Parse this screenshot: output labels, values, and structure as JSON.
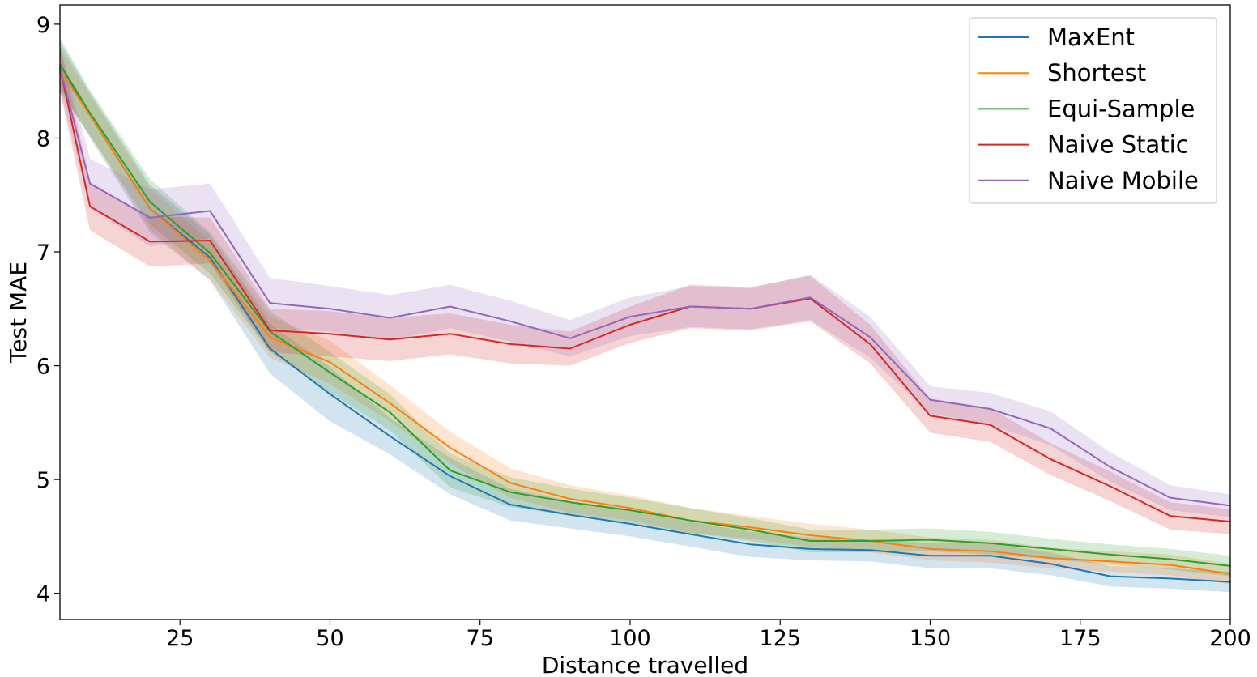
{
  "chart_data": {
    "type": "line",
    "title": "",
    "xlabel": "Distance travelled",
    "ylabel": "Test MAE",
    "xlim": [
      5,
      200
    ],
    "ylim": [
      3.77,
      9.17
    ],
    "xticks": [
      25,
      50,
      75,
      100,
      125,
      150,
      175,
      200
    ],
    "yticks": [
      4,
      5,
      6,
      7,
      8,
      9
    ],
    "grid": false,
    "legend_position": "top-right",
    "x": [
      5,
      10,
      20,
      30,
      40,
      50,
      60,
      70,
      80,
      90,
      100,
      110,
      120,
      130,
      140,
      150,
      160,
      170,
      180,
      190,
      200
    ],
    "series": [
      {
        "name": "MaxEnt",
        "color": "#1f77b4",
        "values": [
          8.65,
          8.2,
          7.38,
          6.95,
          6.15,
          5.75,
          5.38,
          5.03,
          4.78,
          4.69,
          4.61,
          4.52,
          4.43,
          4.39,
          4.38,
          4.33,
          4.33,
          4.26,
          4.15,
          4.13,
          4.1
        ],
        "lower": [
          8.45,
          8.0,
          7.17,
          6.75,
          5.93,
          5.51,
          5.22,
          4.87,
          4.64,
          4.57,
          4.5,
          4.41,
          4.32,
          4.29,
          4.28,
          4.22,
          4.22,
          4.16,
          4.06,
          4.04,
          4.01
        ],
        "upper": [
          8.85,
          8.4,
          7.59,
          7.15,
          6.37,
          5.99,
          5.54,
          5.19,
          4.92,
          4.81,
          4.72,
          4.63,
          4.54,
          4.49,
          4.48,
          4.44,
          4.44,
          4.36,
          4.24,
          4.22,
          4.19
        ]
      },
      {
        "name": "Shortest",
        "color": "#ff7f0e",
        "values": [
          8.6,
          8.2,
          7.38,
          6.92,
          6.25,
          6.03,
          5.67,
          5.28,
          4.97,
          4.83,
          4.75,
          4.64,
          4.58,
          4.51,
          4.46,
          4.39,
          4.37,
          4.31,
          4.28,
          4.25,
          4.17
        ],
        "lower": [
          8.4,
          8.02,
          7.2,
          6.75,
          6.07,
          5.84,
          5.51,
          5.14,
          4.84,
          4.71,
          4.64,
          4.53,
          4.48,
          4.41,
          4.36,
          4.29,
          4.27,
          4.22,
          4.19,
          4.16,
          4.08
        ],
        "upper": [
          8.8,
          8.38,
          7.56,
          7.09,
          6.43,
          6.22,
          5.83,
          5.42,
          5.1,
          4.95,
          4.86,
          4.75,
          4.68,
          4.61,
          4.56,
          4.49,
          4.47,
          4.4,
          4.37,
          4.34,
          4.26
        ]
      },
      {
        "name": "Equi-Sample",
        "color": "#2ca02c",
        "values": [
          8.65,
          8.22,
          7.44,
          6.99,
          6.3,
          5.94,
          5.59,
          5.08,
          4.89,
          4.8,
          4.73,
          4.64,
          4.56,
          4.46,
          4.46,
          4.47,
          4.44,
          4.39,
          4.34,
          4.3,
          4.24
        ],
        "lower": [
          8.42,
          8.02,
          7.24,
          6.81,
          6.12,
          5.76,
          5.43,
          4.93,
          4.76,
          4.68,
          4.62,
          4.53,
          4.46,
          4.36,
          4.36,
          4.37,
          4.34,
          4.3,
          4.25,
          4.21,
          4.15
        ],
        "upper": [
          8.88,
          8.42,
          7.64,
          7.17,
          6.48,
          6.12,
          5.75,
          5.23,
          5.02,
          4.92,
          4.84,
          4.75,
          4.66,
          4.56,
          4.56,
          4.57,
          4.54,
          4.48,
          4.43,
          4.39,
          4.33
        ]
      },
      {
        "name": "Naive Static",
        "color": "#d62728",
        "values": [
          8.62,
          7.4,
          7.09,
          7.1,
          6.31,
          6.28,
          6.23,
          6.28,
          6.19,
          6.15,
          6.36,
          6.52,
          6.5,
          6.59,
          6.19,
          5.56,
          5.48,
          5.18,
          4.94,
          4.68,
          4.63
        ],
        "lower": [
          8.42,
          7.19,
          6.87,
          6.9,
          6.12,
          6.08,
          6.04,
          6.1,
          6.02,
          6.0,
          6.2,
          6.33,
          6.31,
          6.39,
          6.02,
          5.41,
          5.33,
          5.04,
          4.81,
          4.56,
          4.52
        ],
        "upper": [
          8.82,
          7.61,
          7.31,
          7.3,
          6.5,
          6.48,
          6.42,
          6.46,
          6.36,
          6.3,
          6.52,
          6.71,
          6.69,
          6.79,
          6.36,
          5.71,
          5.63,
          5.32,
          5.07,
          4.8,
          4.74
        ]
      },
      {
        "name": "Naive Mobile",
        "color": "#9467bd",
        "values": [
          8.62,
          7.6,
          7.3,
          7.36,
          6.55,
          6.5,
          6.42,
          6.52,
          6.39,
          6.24,
          6.43,
          6.52,
          6.5,
          6.6,
          6.25,
          5.7,
          5.62,
          5.45,
          5.11,
          4.84,
          4.77
        ],
        "lower": [
          8.42,
          7.38,
          7.05,
          7.12,
          6.33,
          6.3,
          6.22,
          6.33,
          6.21,
          6.08,
          6.26,
          6.34,
          6.32,
          6.4,
          6.07,
          5.58,
          5.48,
          5.3,
          4.98,
          4.73,
          4.67
        ],
        "upper": [
          8.82,
          7.82,
          7.55,
          7.6,
          6.77,
          6.7,
          6.62,
          6.71,
          6.57,
          6.4,
          6.6,
          6.7,
          6.68,
          6.8,
          6.43,
          5.82,
          5.76,
          5.6,
          5.24,
          4.95,
          4.87
        ]
      }
    ]
  }
}
